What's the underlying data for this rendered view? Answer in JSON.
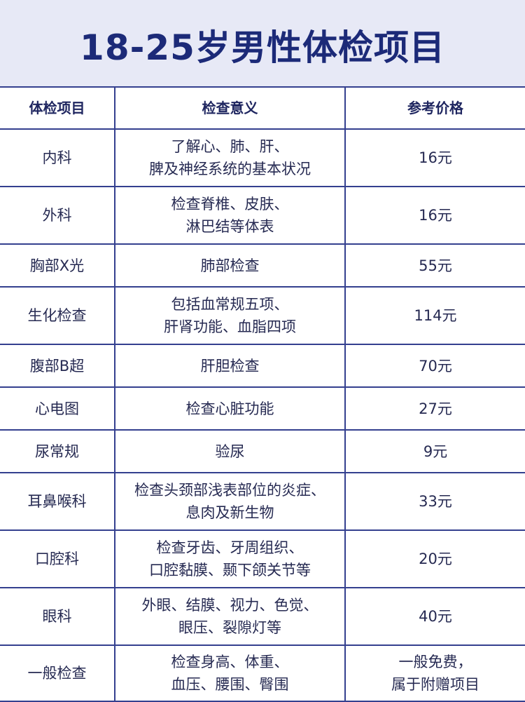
{
  "title": "18-25岁男性体检项目",
  "colors": {
    "title_band": "#e7e9f6",
    "title_text": "#1c2a78",
    "grid": "#34408f"
  },
  "table": {
    "headers": [
      "体检项目",
      "检查意义",
      "参考价格"
    ],
    "rows": [
      {
        "item": "内科",
        "meaning": [
          "了解心、肺、肝、",
          "脾及神经系统的基本状况"
        ],
        "price": [
          "16元"
        ]
      },
      {
        "item": "外科",
        "meaning": [
          "检查脊椎、皮肤、",
          "淋巴结等体表"
        ],
        "price": [
          "16元"
        ]
      },
      {
        "item": "胸部X光",
        "meaning": [
          "肺部检查"
        ],
        "price": [
          "55元"
        ]
      },
      {
        "item": "生化检查",
        "meaning": [
          "包括血常规五项、",
          "肝肾功能、血脂四项"
        ],
        "price": [
          "114元"
        ]
      },
      {
        "item": "腹部B超",
        "meaning": [
          "肝胆检查"
        ],
        "price": [
          "70元"
        ]
      },
      {
        "item": "心电图",
        "meaning": [
          "检查心脏功能"
        ],
        "price": [
          "27元"
        ]
      },
      {
        "item": "尿常规",
        "meaning": [
          "验尿"
        ],
        "price": [
          "9元"
        ]
      },
      {
        "item": "耳鼻喉科",
        "meaning": [
          "检查头颈部浅表部位的炎症、",
          "息肉及新生物"
        ],
        "price": [
          "33元"
        ]
      },
      {
        "item": "口腔科",
        "meaning": [
          "检查牙齿、牙周组织、",
          "口腔黏膜、颞下颌关节等"
        ],
        "price": [
          "20元"
        ]
      },
      {
        "item": "眼科",
        "meaning": [
          "外眼、结膜、视力、色觉、",
          "眼压、裂隙灯等"
        ],
        "price": [
          "40元"
        ]
      },
      {
        "item": "一般检查",
        "meaning": [
          "检查身高、体重、",
          "血压、腰围、臀围"
        ],
        "price": [
          "一般免费，",
          "属于附赠项目"
        ]
      }
    ]
  }
}
